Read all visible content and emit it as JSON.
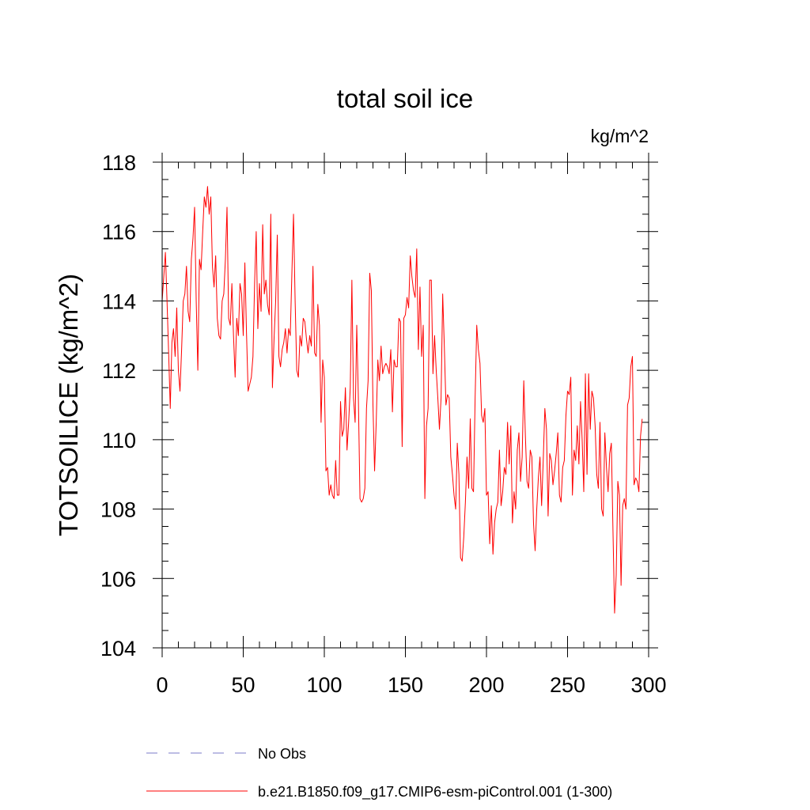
{
  "chart_data": {
    "type": "line",
    "title": "total soil ice",
    "units": "kg/m^2",
    "ylabel": "TOTSOILICE  (kg/m^2)",
    "xlabel": "",
    "xlim": [
      0,
      300
    ],
    "ylim": [
      104,
      118
    ],
    "xticks": [
      0,
      50,
      100,
      150,
      200,
      250,
      300
    ],
    "xtick_labels": [
      "0",
      "50",
      "100",
      "150",
      "200",
      "250",
      "300"
    ],
    "yticks": [
      104,
      106,
      108,
      110,
      112,
      114,
      116,
      118
    ],
    "ytick_labels": [
      "104",
      "106",
      "108",
      "110",
      "112",
      "114",
      "116",
      "118"
    ],
    "grid": false,
    "legend_position": "bottom",
    "series": [
      {
        "name": "No Obs",
        "color": "#7b7bc8",
        "style": "dashed",
        "x": [],
        "y": []
      },
      {
        "name": "b.e21.B1850.f09_g17.CMIP6-esm-piControl.001 (1-300)",
        "color": "#ff0000",
        "style": "solid",
        "x_start": 0,
        "x_step": 1,
        "y": [
          114.0,
          114.7,
          115.4,
          114.0,
          112.5,
          110.9,
          112.8,
          113.2,
          112.4,
          113.8,
          112.0,
          111.4,
          112.6,
          114.0,
          114.2,
          115.0,
          113.7,
          113.4,
          115.2,
          115.8,
          116.7,
          114.0,
          112.0,
          115.2,
          114.9,
          116.0,
          117.0,
          116.7,
          117.3,
          116.5,
          117.0,
          115.0,
          114.4,
          115.3,
          113.5,
          113.0,
          112.9,
          114.0,
          114.2,
          115.2,
          116.7,
          113.5,
          113.3,
          114.5,
          113.0,
          111.8,
          113.5,
          113.0,
          114.5,
          114.2,
          113.0,
          115.1,
          113.1,
          111.4,
          111.6,
          111.8,
          112.4,
          114.5,
          116.0,
          113.2,
          114.5,
          113.7,
          116.2,
          114.2,
          114.6,
          113.9,
          113.6,
          116.5,
          111.5,
          112.9,
          114.0,
          115.9,
          112.4,
          112.1,
          112.6,
          112.8,
          113.2,
          112.5,
          113.2,
          113.0,
          114.8,
          116.5,
          114.0,
          112.0,
          111.8,
          113.0,
          112.7,
          113.5,
          113.4,
          112.9,
          112.5,
          113.0,
          112.7,
          115.0,
          112.5,
          112.4,
          113.9,
          113.3,
          110.5,
          112.3,
          111.8,
          109.1,
          109.2,
          108.4,
          108.7,
          108.4,
          108.3,
          109.4,
          108.4,
          108.4,
          111.1,
          110.1,
          110.3,
          111.5,
          109.7,
          110.5,
          111.5,
          114.6,
          111.2,
          110.5,
          113.3,
          111.2,
          108.3,
          108.2,
          108.3,
          108.6,
          110.9,
          111.7,
          114.8,
          114.3,
          111.0,
          109.1,
          110.5,
          112.3,
          111.7,
          112.7,
          111.9,
          112.1,
          112.2,
          112.1,
          111.9,
          112.6,
          110.8,
          112.3,
          112.1,
          112.1,
          113.5,
          113.4,
          109.8,
          113.5,
          113.6,
          114.1,
          113.8,
          115.3,
          114.7,
          114.3,
          114.1,
          115.5,
          112.6,
          114.4,
          112.4,
          113.3,
          108.3,
          110.4,
          110.9,
          114.6,
          114.6,
          111.9,
          113.0,
          112.0,
          111.2,
          110.3,
          111.2,
          114.2,
          112.7,
          111.0,
          111.3,
          111.2,
          109.5,
          109.0,
          108.4,
          108.0,
          109.9,
          109.0,
          106.6,
          106.5,
          107.2,
          108.2,
          109.5,
          108.6,
          110.6,
          108.6,
          108.5,
          111.2,
          113.3,
          112.6,
          112.2,
          110.7,
          110.5,
          110.9,
          108.4,
          108.5,
          107.0,
          108.1,
          106.7,
          107.6,
          108.0,
          108.2,
          109.7,
          108.1,
          108.5,
          109.2,
          109.0,
          110.5,
          109.3,
          110.4,
          107.6,
          108.5,
          108.0,
          109.7,
          110.2,
          108.8,
          109.5,
          111.7,
          110.1,
          108.8,
          108.6,
          109.7,
          109.5,
          107.6,
          106.8,
          108.0,
          108.9,
          109.5,
          108.1,
          109.4,
          110.9,
          110.3,
          107.8,
          109.6,
          109.4,
          108.7,
          109.1,
          109.6,
          110.2,
          108.4,
          108.2,
          109.2,
          109.4,
          110.7,
          111.4,
          111.3,
          111.8,
          108.4,
          109.7,
          109.4,
          110.4,
          109.3,
          111.1,
          110.0,
          108.5,
          111.9,
          109.0,
          111.9,
          110.3,
          111.4,
          111.2,
          110.4,
          109.0,
          108.6,
          110.5,
          108.0,
          107.8,
          110.2,
          109.2,
          108.5,
          109.6,
          109.9,
          107.4,
          105.0,
          106.1,
          108.8,
          108.4,
          105.8,
          108.1,
          108.3,
          108.0,
          111.0,
          111.2,
          112.1,
          112.4,
          108.7,
          108.9,
          108.8,
          108.5,
          110.1,
          110.6
        ]
      }
    ]
  }
}
